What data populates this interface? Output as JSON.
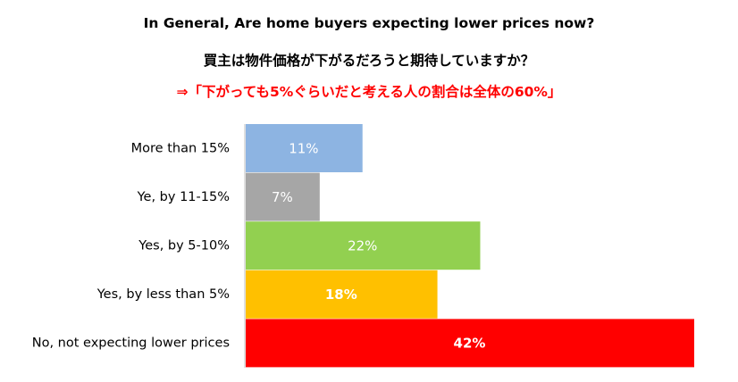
{
  "titles": {
    "english": "In General, Are home buyers expecting lower prices now?",
    "japanese": "買主は物件価格が下がるだろうと期待していますか？",
    "note": "⇒「下がっても5%ぐらいだと考える人の割合は全体の60%」"
  },
  "colors": {
    "note": "#ff0000",
    "axis": "#bfbfbf"
  },
  "chart_data": {
    "type": "bar",
    "orientation": "horizontal",
    "categories": [
      "More than 15%",
      "Ye, by 11-15%",
      "Yes, by 5-10%",
      "Yes, by less than 5%",
      "No, not expecting lower prices"
    ],
    "values": [
      11,
      7,
      22,
      18,
      42
    ],
    "data_labels": [
      "11%",
      "7%",
      "22%",
      "18%",
      "42%"
    ],
    "bar_colors": [
      "#8db4e2",
      "#a6a6a6",
      "#92d050",
      "#ffc000",
      "#ff0000"
    ],
    "label_colors": [
      "#ffffff",
      "#ffffff",
      "#ffffff",
      "#ffffff",
      "#ffffff"
    ],
    "label_bold": [
      false,
      false,
      false,
      true,
      true
    ],
    "xlim": [
      0,
      42
    ],
    "grid": false,
    "legend": "none"
  }
}
